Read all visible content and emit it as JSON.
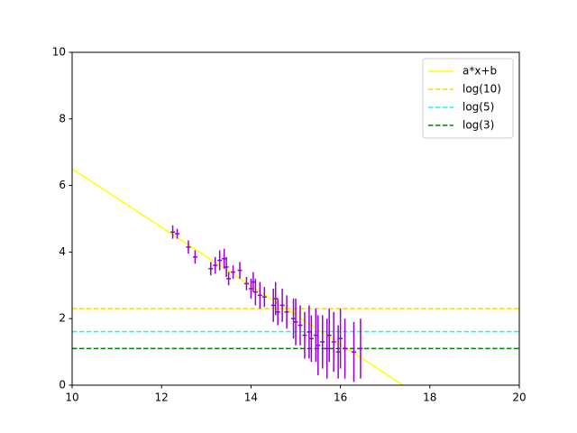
{
  "chart_data": {
    "type": "errorbar",
    "xlim": [
      10,
      20
    ],
    "xticks": [
      10,
      12,
      14,
      16,
      18,
      20
    ],
    "ylim": [
      0,
      10
    ],
    "yticks": [
      0,
      2,
      4,
      6,
      8,
      10
    ],
    "legend": "upper right",
    "series": [
      {
        "name": "a*x+b",
        "color": "#ffff00",
        "dashed": false,
        "x": [
          10,
          17.4
        ],
        "values": [
          6.5,
          0
        ]
      },
      {
        "name": "log(10)",
        "color": "#ffd700",
        "dashed": true,
        "x": [
          10,
          20
        ],
        "values": [
          2.3,
          2.3
        ]
      },
      {
        "name": "log(5)",
        "color": "#00ffff",
        "dashed": true,
        "x": [
          10,
          20
        ],
        "values": [
          1.61,
          1.61
        ]
      },
      {
        "name": "log(3)",
        "color": "#008000",
        "dashed": true,
        "x": [
          10,
          20
        ],
        "values": [
          1.1,
          1.1
        ]
      }
    ],
    "errorbar": {
      "color": "#9400d3",
      "x": [
        12.25,
        12.35,
        12.6,
        12.75,
        13.1,
        13.2,
        13.3,
        13.4,
        13.45,
        13.5,
        13.6,
        13.75,
        13.9,
        14.0,
        14.05,
        14.1,
        14.2,
        14.3,
        14.5,
        14.55,
        14.6,
        14.7,
        14.8,
        14.95,
        15.0,
        15.1,
        15.2,
        15.3,
        15.35,
        15.45,
        15.5,
        15.6,
        15.7,
        15.75,
        15.85,
        15.95,
        16.0,
        16.1,
        16.3,
        16.45
      ],
      "values": [
        4.6,
        4.55,
        4.15,
        3.85,
        3.5,
        3.6,
        3.75,
        3.8,
        3.55,
        3.2,
        3.4,
        3.45,
        3.05,
        2.9,
        3.1,
        2.8,
        2.7,
        2.65,
        2.4,
        2.6,
        2.2,
        2.4,
        2.2,
        2.0,
        1.9,
        1.8,
        1.5,
        1.6,
        1.4,
        1.5,
        1.2,
        1.3,
        1.1,
        1.5,
        1.3,
        1.0,
        1.4,
        1.1,
        1.0,
        1.1
      ],
      "yerr": [
        0.2,
        0.15,
        0.2,
        0.2,
        0.2,
        0.25,
        0.3,
        0.3,
        0.3,
        0.2,
        0.2,
        0.25,
        0.2,
        0.3,
        0.3,
        0.4,
        0.4,
        0.3,
        0.5,
        0.5,
        0.4,
        0.5,
        0.5,
        0.6,
        0.7,
        0.6,
        0.7,
        0.8,
        0.7,
        0.8,
        0.9,
        0.8,
        0.9,
        0.8,
        0.9,
        0.8,
        0.9,
        0.9,
        0.9,
        0.9
      ],
      "xerr": [
        0.05,
        0.05,
        0.05,
        0.05,
        0.05,
        0.05,
        0.05,
        0.05,
        0.05,
        0.05,
        0.05,
        0.05,
        0.05,
        0.05,
        0.05,
        0.05,
        0.05,
        0.05,
        0.05,
        0.05,
        0.05,
        0.05,
        0.05,
        0.05,
        0.05,
        0.05,
        0.05,
        0.05,
        0.05,
        0.05,
        0.05,
        0.05,
        0.05,
        0.05,
        0.05,
        0.05,
        0.05,
        0.05,
        0.05,
        0.05
      ]
    }
  }
}
